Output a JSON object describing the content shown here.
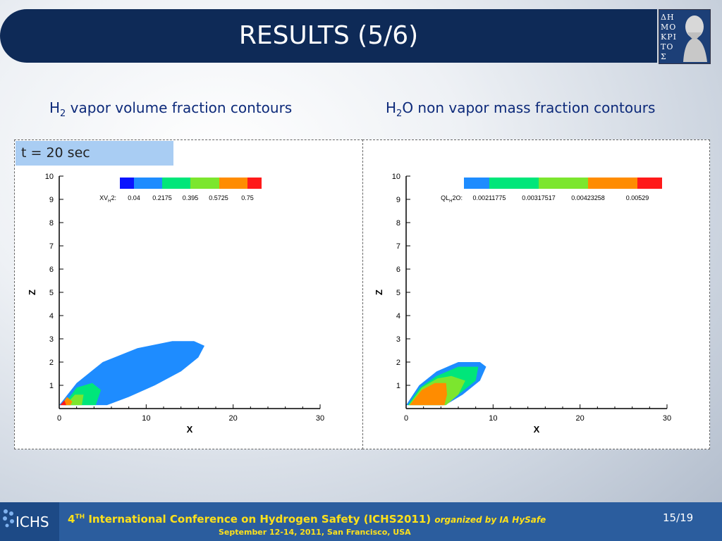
{
  "slide": {
    "title": "RESULTS (5/6)",
    "logo_text": "ΔΗΜΟΚΡΙΤΟΣ",
    "time_label": "t = 20 sec"
  },
  "subtitles": {
    "left": {
      "pre": "H",
      "sub": "2",
      "post": " vapor volume fraction contours"
    },
    "right": {
      "pre": "H",
      "sub": "2",
      "post": "O non vapor mass fraction contours"
    }
  },
  "footer": {
    "logo": "ICHS",
    "num": "4",
    "sup": "TH",
    "conference": " International Conference on Hydrogen Safety (ICHS2011) ",
    "organizer": "organized by IA HySafe",
    "dates": "September 12-14, 2011, San Francisco, USA",
    "page": "15/19"
  },
  "colors": {
    "title_bg": "#0e2a57",
    "footer_bg": "#2b5d9e",
    "footer_text": "#ffe11a",
    "subtitle_text": "#0d2a7a",
    "time_badge_bg": "#a9cdf3"
  },
  "chart_data": [
    {
      "type": "heatmap",
      "xlabel": "X",
      "ylabel": "Z",
      "xticks": [
        "0",
        "10",
        "20",
        "30"
      ],
      "yticks": [
        "1",
        "2",
        "3",
        "4",
        "5",
        "6",
        "7",
        "8",
        "9",
        "10"
      ],
      "xlim": [
        0,
        30
      ],
      "ylim": [
        0,
        10
      ],
      "legend_label": "XV",
      "legend_label_sub": "H",
      "legend_label_post": "2:",
      "levels": [
        "0.04",
        "0.2175",
        "0.395",
        "0.5725",
        "0.75"
      ],
      "level_colors": [
        "#0a14ff",
        "#1e8cff",
        "#00e67a",
        "#7ce62e",
        "#ff8c00",
        "#ff1a1a"
      ],
      "contours": [
        {
          "color": "#1e8cff",
          "points": [
            [
              0,
              0.15
            ],
            [
              2,
              1.1
            ],
            [
              5,
              2
            ],
            [
              9,
              2.6
            ],
            [
              13,
              2.9
            ],
            [
              15.5,
              2.9
            ],
            [
              16.7,
              2.7
            ],
            [
              16,
              2.2
            ],
            [
              14,
              1.6
            ],
            [
              11,
              1
            ],
            [
              8,
              0.5
            ],
            [
              5.5,
              0.15
            ]
          ]
        },
        {
          "color": "#00e67a",
          "points": [
            [
              0.5,
              0.15
            ],
            [
              2,
              0.9
            ],
            [
              3.8,
              1.1
            ],
            [
              4.8,
              0.8
            ],
            [
              4.2,
              0.15
            ]
          ]
        },
        {
          "color": "#7ce62e",
          "points": [
            [
              0.7,
              0.15
            ],
            [
              1.8,
              0.6
            ],
            [
              2.8,
              0.6
            ],
            [
              2.6,
              0.15
            ]
          ]
        },
        {
          "color": "#ff8c00",
          "points": [
            [
              0.2,
              0.15
            ],
            [
              0.9,
              0.5
            ],
            [
              1.5,
              0.3
            ],
            [
              1.3,
              0.15
            ]
          ]
        },
        {
          "color": "#ff1a1a",
          "points": [
            [
              0.1,
              0.15
            ],
            [
              0.6,
              0.35
            ],
            [
              0.8,
              0.15
            ]
          ]
        }
      ]
    },
    {
      "type": "heatmap",
      "xlabel": "X",
      "ylabel": "Z",
      "xticks": [
        "0",
        "10",
        "20",
        "30"
      ],
      "yticks": [
        "1",
        "2",
        "3",
        "4",
        "5",
        "6",
        "7",
        "8",
        "9",
        "10"
      ],
      "xlim": [
        0,
        30
      ],
      "ylim": [
        0,
        10
      ],
      "legend_label": "QL",
      "legend_label_sub": "H",
      "legend_label_post": "2O:",
      "levels": [
        "0.00211775",
        "0.00317517",
        "0.00423258",
        "0.00529"
      ],
      "level_colors": [
        "#1e8cff",
        "#00e67a",
        "#7ce62e",
        "#ff8c00",
        "#ff1a1a"
      ],
      "contours": [
        {
          "color": "#1e8cff",
          "points": [
            [
              0,
              0.15
            ],
            [
              1.5,
              1
            ],
            [
              3.5,
              1.6
            ],
            [
              6,
              2
            ],
            [
              8.5,
              2
            ],
            [
              9.2,
              1.8
            ],
            [
              8.5,
              1.2
            ],
            [
              6.5,
              0.6
            ],
            [
              4.5,
              0.15
            ]
          ]
        },
        {
          "color": "#00e67a",
          "points": [
            [
              0.2,
              0.15
            ],
            [
              1.6,
              0.9
            ],
            [
              3.5,
              1.4
            ],
            [
              6,
              1.8
            ],
            [
              8.3,
              1.8
            ],
            [
              8,
              1.2
            ],
            [
              6,
              0.6
            ],
            [
              4.2,
              0.15
            ]
          ]
        },
        {
          "color": "#7ce62e",
          "points": [
            [
              0.3,
              0.15
            ],
            [
              1.8,
              0.9
            ],
            [
              3.6,
              1.3
            ],
            [
              5.2,
              1.4
            ],
            [
              6.8,
              1.2
            ],
            [
              6,
              0.6
            ],
            [
              4.6,
              0.15
            ]
          ]
        },
        {
          "color": "#ff8c00",
          "points": [
            [
              0.4,
              0.15
            ],
            [
              1.8,
              0.8
            ],
            [
              3.3,
              1.1
            ],
            [
              4.6,
              1.1
            ],
            [
              4.7,
              0.6
            ],
            [
              4.4,
              0.15
            ]
          ]
        }
      ]
    }
  ]
}
